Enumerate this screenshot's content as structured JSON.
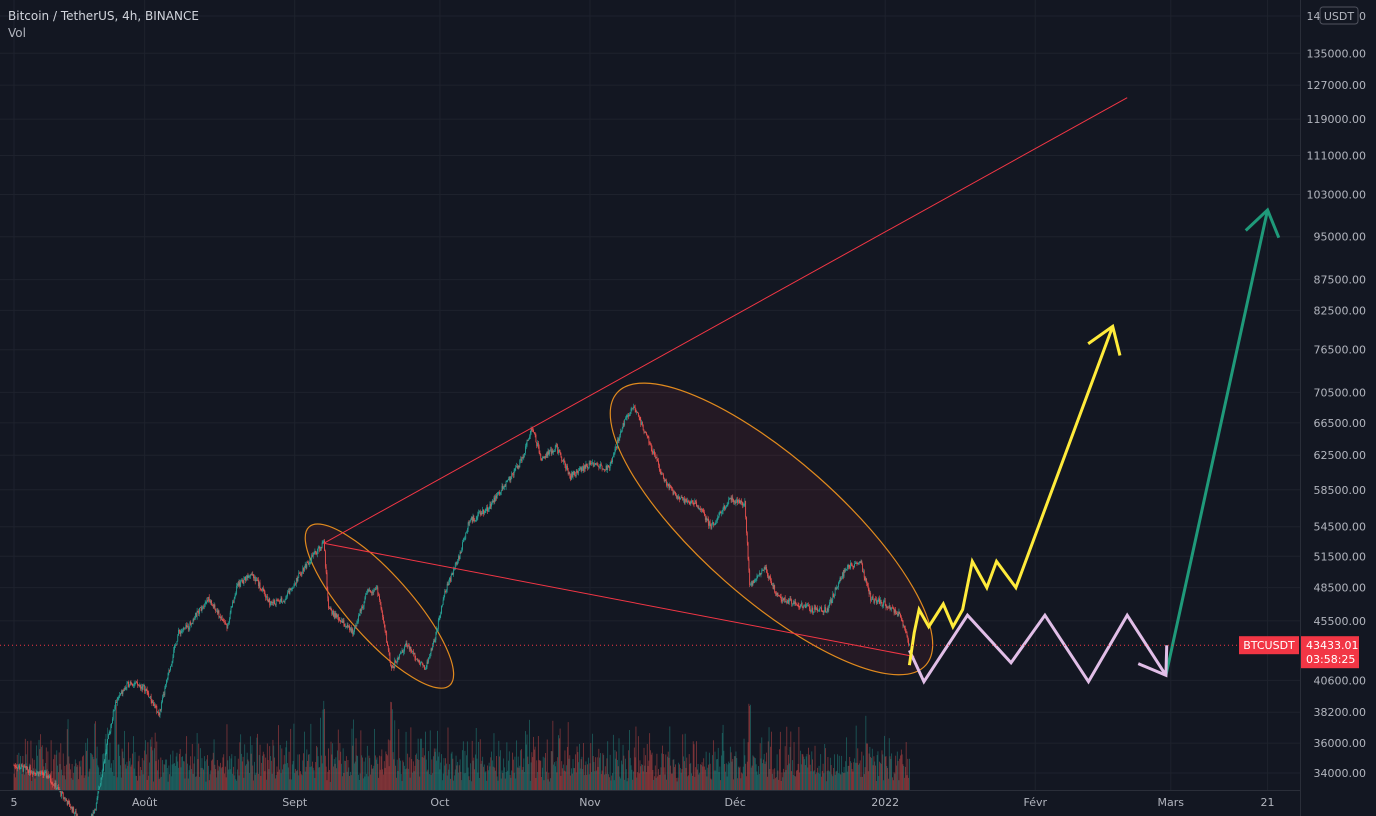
{
  "legend": {
    "symbol": "Bitcoin / TetherUS, 4h, BINANCE",
    "volume_label": "Vol"
  },
  "price_axis": {
    "currency": "USDT",
    "ticks": [
      "145000.00",
      "135000.00",
      "127000.00",
      "119000.00",
      "111000.00",
      "103000.00",
      "95000.00",
      "87500.00",
      "82500.00",
      "76500.00",
      "70500.00",
      "66500.00",
      "62500.00",
      "58500.00",
      "54500.00",
      "51500.00",
      "48500.00",
      "45500.00",
      "40600.00",
      "38200.00",
      "36000.00",
      "34000.00"
    ],
    "current_symbol": "BTCUSDT",
    "current_price": "43433.01",
    "countdown": "03:58:25"
  },
  "time_axis": {
    "labels": [
      "5",
      "Août",
      "Sept",
      "Oct",
      "Nov",
      "Déc",
      "2022",
      "Févr",
      "Mars",
      "21"
    ]
  },
  "colors": {
    "background": "#131722",
    "grid": "#1e222d",
    "up": "#26a69a",
    "down": "#ef5350",
    "trendline": "#f23645",
    "ellipse": "#e08a1e",
    "yellow_path": "#ffeb3b",
    "pink_path": "#e1bee7",
    "green_arrow": "#1f9a7a",
    "price_label": "#f23645"
  },
  "chart_data": {
    "type": "candlestick",
    "symbol": "BTCUSDT",
    "interval": "4h",
    "scale": "log",
    "x_range": [
      "2021-07-05",
      "2022-03-24"
    ],
    "y_range": [
      33000,
      145000
    ],
    "price_path": [
      [
        "2021-07-05",
        34500
      ],
      [
        "2021-07-12",
        33800
      ],
      [
        "2021-07-20",
        30500
      ],
      [
        "2021-07-22",
        32000
      ],
      [
        "2021-07-26",
        39000
      ],
      [
        "2021-07-29",
        40500
      ],
      [
        "2021-08-01",
        40000
      ],
      [
        "2021-08-04",
        38000
      ],
      [
        "2021-08-08",
        44500
      ],
      [
        "2021-08-10",
        45000
      ],
      [
        "2021-08-14",
        47500
      ],
      [
        "2021-08-18",
        45000
      ],
      [
        "2021-08-20",
        48500
      ],
      [
        "2021-08-23",
        50000
      ],
      [
        "2021-08-27",
        47000
      ],
      [
        "2021-08-30",
        47500
      ],
      [
        "2021-09-03",
        50500
      ],
      [
        "2021-09-07",
        52800
      ],
      [
        "2021-09-08",
        46500
      ],
      [
        "2021-09-13",
        44500
      ],
      [
        "2021-09-16",
        48000
      ],
      [
        "2021-09-18",
        48500
      ],
      [
        "2021-09-21",
        41500
      ],
      [
        "2021-09-24",
        43500
      ],
      [
        "2021-09-28",
        41500
      ],
      [
        "2021-09-30",
        44000
      ],
      [
        "2021-10-02",
        48000
      ],
      [
        "2021-10-05",
        51500
      ],
      [
        "2021-10-07",
        55000
      ],
      [
        "2021-10-11",
        56500
      ],
      [
        "2021-10-15",
        59500
      ],
      [
        "2021-10-18",
        62000
      ],
      [
        "2021-10-20",
        66000
      ],
      [
        "2021-10-22",
        62000
      ],
      [
        "2021-10-25",
        63500
      ],
      [
        "2021-10-28",
        60000
      ],
      [
        "2021-11-01",
        61500
      ],
      [
        "2021-11-05",
        61000
      ],
      [
        "2021-11-08",
        66500
      ],
      [
        "2021-11-10",
        68500
      ],
      [
        "2021-11-13",
        64500
      ],
      [
        "2021-11-16",
        60000
      ],
      [
        "2021-11-19",
        57500
      ],
      [
        "2021-11-23",
        57000
      ],
      [
        "2021-11-26",
        54500
      ],
      [
        "2021-11-30",
        57500
      ],
      [
        "2021-12-03",
        57000
      ],
      [
        "2021-12-04",
        48500
      ],
      [
        "2021-12-07",
        50500
      ],
      [
        "2021-12-10",
        47500
      ],
      [
        "2021-12-14",
        47000
      ],
      [
        "2021-12-17",
        46500
      ],
      [
        "2021-12-20",
        46500
      ],
      [
        "2021-12-24",
        50500
      ],
      [
        "2021-12-27",
        50800
      ],
      [
        "2021-12-29",
        47500
      ],
      [
        "2022-01-01",
        47000
      ],
      [
        "2022-01-04",
        46000
      ],
      [
        "2022-01-06",
        43433
      ]
    ],
    "volume_spikes": [
      "2021-07-26",
      "2021-09-07",
      "2021-09-21",
      "2021-12-04"
    ],
    "annotations": {
      "trendline_upper": [
        [
          "2021-09-07",
          52800
        ],
        [
          "2022-02-20",
          124000
        ]
      ],
      "trendline_lower": [
        [
          "2021-09-07",
          52800
        ],
        [
          "2022-01-07",
          42500
        ]
      ],
      "ellipses": [
        {
          "from": [
            "2021-09-07",
            52800
          ],
          "to": [
            "2021-09-30",
            41500
          ]
        },
        {
          "from": [
            "2021-11-10",
            68500
          ],
          "to": [
            "2022-01-06",
            43000
          ]
        }
      ],
      "yellow_projection": [
        [
          "2022-01-06",
          41800
        ],
        [
          "2022-01-07",
          44500
        ],
        [
          "2022-01-08",
          46500
        ],
        [
          "2022-01-10",
          45000
        ],
        [
          "2022-01-13",
          47000
        ],
        [
          "2022-01-15",
          45000
        ],
        [
          "2022-01-17",
          46500
        ],
        [
          "2022-01-19",
          51000
        ],
        [
          "2022-01-22",
          48500
        ],
        [
          "2022-01-24",
          51000
        ],
        [
          "2022-01-28",
          48500
        ],
        [
          "2022-02-17",
          80000
        ]
      ],
      "pink_projection": [
        [
          "2022-01-06",
          43000
        ],
        [
          "2022-01-09",
          40500
        ],
        [
          "2022-01-18",
          46000
        ],
        [
          "2022-01-27",
          42000
        ],
        [
          "2022-02-03",
          46000
        ],
        [
          "2022-02-12",
          40500
        ],
        [
          "2022-02-20",
          46000
        ],
        [
          "2022-02-28",
          41000
        ]
      ],
      "green_projection": [
        [
          "2022-02-28",
          41000
        ],
        [
          "2022-03-21",
          100000
        ]
      ]
    }
  }
}
